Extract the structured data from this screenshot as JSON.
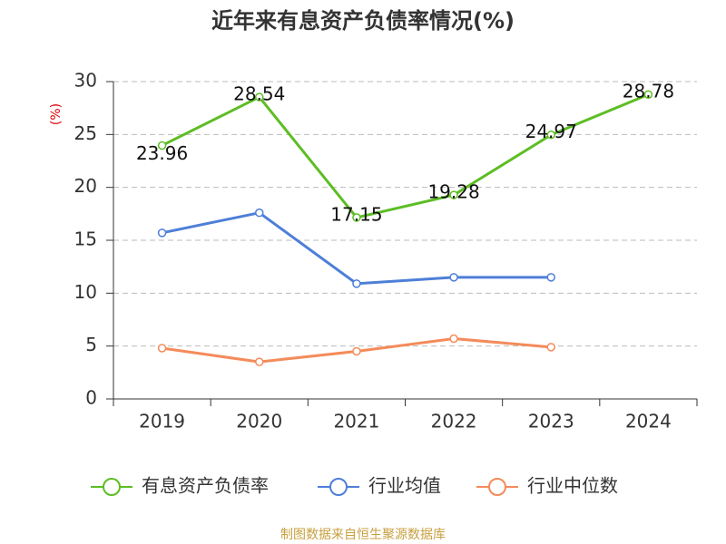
{
  "chart_data": {
    "type": "line",
    "title": "近年来有息资产负债率情况(%)",
    "y_label": "(%)",
    "categories": [
      "2019",
      "2020",
      "2021",
      "2022",
      "2023",
      "2024"
    ],
    "series": [
      {
        "name": "有息资产负债率",
        "color": "#5dbd24",
        "values": [
          23.96,
          28.54,
          17.15,
          19.28,
          24.97,
          28.78
        ],
        "show_labels": true
      },
      {
        "name": "行业均值",
        "color": "#4e7fd8",
        "values": [
          15.7,
          17.6,
          10.9,
          11.5,
          11.5,
          null
        ],
        "show_labels": false
      },
      {
        "name": "行业中位数",
        "color": "#f48b5a",
        "values": [
          4.8,
          3.5,
          4.5,
          5.7,
          4.9,
          null
        ],
        "show_labels": false
      }
    ],
    "ylim": [
      0,
      30
    ],
    "yticks": [
      0,
      5,
      10,
      15,
      20,
      25,
      30
    ],
    "grid": true,
    "source": "制图数据来自恒生聚源数据库"
  }
}
